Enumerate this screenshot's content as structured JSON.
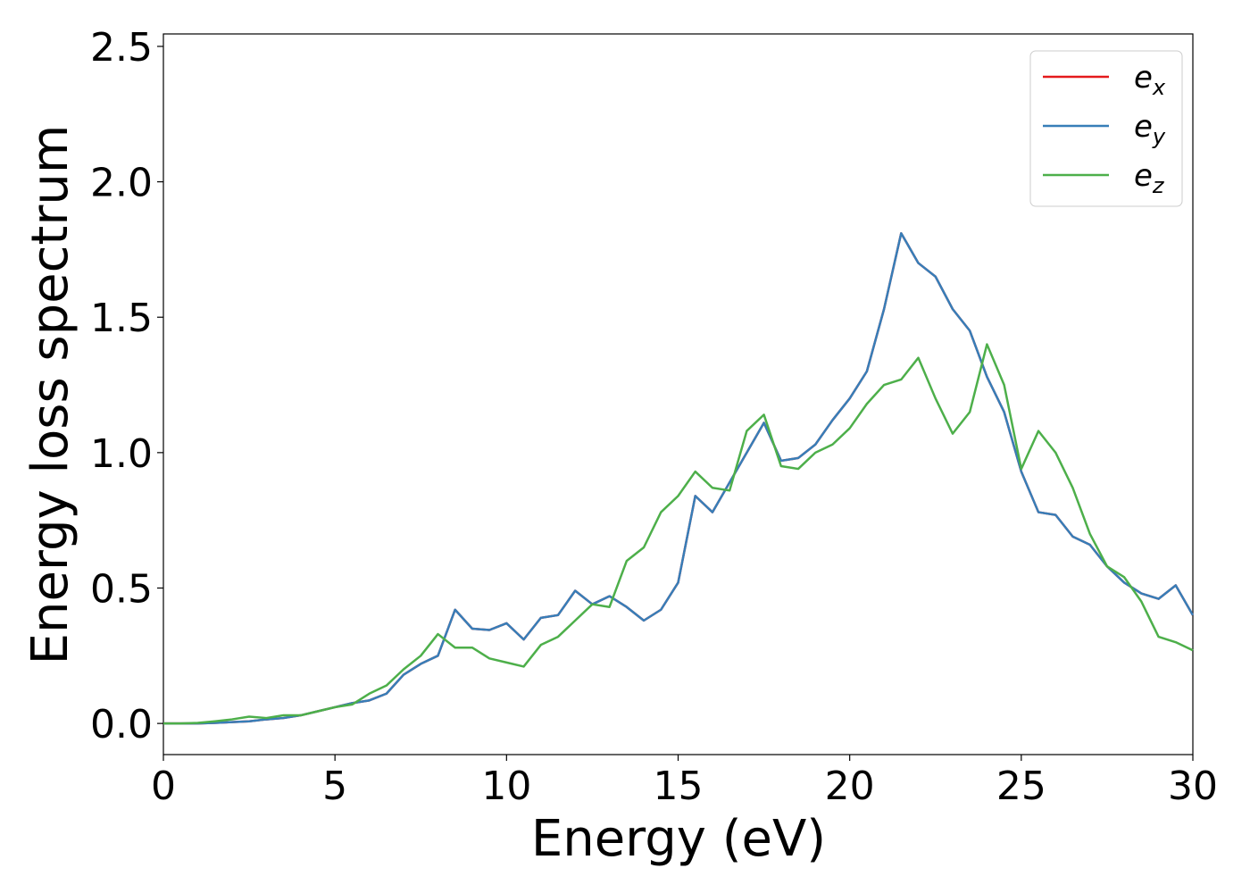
{
  "chart_data": {
    "type": "line",
    "xlabel": "Energy (eV)",
    "ylabel": "Energy loss spectrum",
    "x": [
      0,
      0.5,
      1,
      1.5,
      2,
      2.5,
      3,
      3.5,
      4,
      4.5,
      5,
      5.5,
      6,
      6.5,
      7,
      7.5,
      8,
      8.5,
      9,
      9.5,
      10,
      10.5,
      11,
      11.5,
      12,
      12.5,
      13,
      13.5,
      14,
      14.5,
      15,
      15.5,
      16,
      16.5,
      17,
      17.5,
      18,
      18.5,
      19,
      19.5,
      20,
      20.5,
      21,
      21.5,
      22,
      22.5,
      23,
      23.5,
      24,
      24.5,
      25,
      25.5,
      26,
      26.5,
      27,
      27.5,
      28,
      28.5,
      29,
      29.5,
      30
    ],
    "series": [
      {
        "name": "e_x",
        "color": "#e41a1c",
        "values": [
          0,
          0,
          0,
          0.002,
          0.005,
          0.008,
          0.015,
          0.02,
          0.03,
          0.045,
          0.06,
          0.075,
          0.085,
          0.11,
          0.18,
          0.22,
          0.25,
          0.42,
          0.35,
          0.345,
          0.37,
          0.31,
          0.39,
          0.4,
          0.49,
          0.44,
          0.47,
          0.43,
          0.38,
          0.42,
          0.52,
          0.84,
          0.78,
          0.89,
          1.0,
          1.11,
          0.97,
          0.98,
          1.03,
          1.12,
          1.2,
          1.3,
          1.53,
          1.81,
          1.7,
          1.65,
          1.53,
          1.45,
          1.28,
          1.15,
          0.93,
          0.78,
          0.77,
          0.69,
          0.66,
          0.58,
          0.52,
          0.48,
          0.46,
          0.51,
          0.4
        ]
      },
      {
        "name": "e_y",
        "color": "#377eb8",
        "values": [
          0,
          0,
          0,
          0.002,
          0.005,
          0.008,
          0.015,
          0.02,
          0.03,
          0.045,
          0.06,
          0.075,
          0.085,
          0.11,
          0.18,
          0.22,
          0.25,
          0.42,
          0.35,
          0.345,
          0.37,
          0.31,
          0.39,
          0.4,
          0.49,
          0.44,
          0.47,
          0.43,
          0.38,
          0.42,
          0.52,
          0.84,
          0.78,
          0.89,
          1.0,
          1.11,
          0.97,
          0.98,
          1.03,
          1.12,
          1.2,
          1.3,
          1.53,
          1.81,
          1.7,
          1.65,
          1.53,
          1.45,
          1.28,
          1.15,
          0.93,
          0.78,
          0.77,
          0.69,
          0.66,
          0.58,
          0.52,
          0.48,
          0.46,
          0.51,
          0.4
        ]
      },
      {
        "name": "e_z",
        "color": "#4daf4a",
        "values": [
          0,
          0,
          0.002,
          0.008,
          0.015,
          0.025,
          0.02,
          0.03,
          0.03,
          0.045,
          0.06,
          0.07,
          0.11,
          0.14,
          0.2,
          0.25,
          0.33,
          0.28,
          0.28,
          0.24,
          0.225,
          0.21,
          0.29,
          0.32,
          0.38,
          0.44,
          0.43,
          0.6,
          0.65,
          0.78,
          0.84,
          0.93,
          0.87,
          0.86,
          1.08,
          1.14,
          0.95,
          0.94,
          1.0,
          1.03,
          1.09,
          1.18,
          1.25,
          1.27,
          1.35,
          1.2,
          1.07,
          1.15,
          1.4,
          1.25,
          0.94,
          1.08,
          1.0,
          0.87,
          0.7,
          0.58,
          0.54,
          0.45,
          0.32,
          0.3,
          0.27
        ]
      }
    ],
    "xlim": [
      0,
      30
    ],
    "xticks": [
      0,
      5,
      10,
      15,
      20,
      25,
      30
    ],
    "ylim": [
      -0.115,
      2.546
    ],
    "yticks": [
      {
        "value": 0,
        "label": "0.0"
      },
      0.5,
      {
        "value": 1,
        "label": "1.0"
      },
      1.5,
      {
        "value": 2,
        "label": "2.0"
      },
      2.5
    ],
    "grid": false,
    "legend": "upper right"
  }
}
